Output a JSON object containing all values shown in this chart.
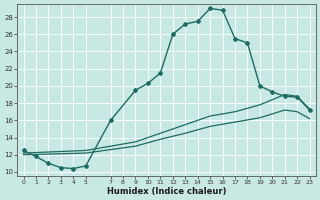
{
  "xlabel": "Humidex (Indice chaleur)",
  "bg_color": "#c8e8e4",
  "grid_color": "#b0d4d0",
  "line_color": "#1e6b62",
  "xlim": [
    -0.5,
    23.5
  ],
  "ylim": [
    9.5,
    29.5
  ],
  "xtick_vals": [
    0,
    1,
    2,
    3,
    4,
    5,
    7,
    8,
    9,
    10,
    11,
    12,
    13,
    14,
    15,
    16,
    17,
    18,
    19,
    20,
    21,
    22,
    23
  ],
  "xtick_labels": [
    "0",
    "1",
    "2",
    "3",
    "4",
    "5",
    "7",
    "8",
    "9",
    "10",
    "11",
    "12",
    "13",
    "14",
    "15",
    "16",
    "17",
    "18",
    "19",
    "20",
    "21",
    "22",
    "23"
  ],
  "ytick_vals": [
    10,
    12,
    14,
    16,
    18,
    20,
    22,
    24,
    26,
    28
  ],
  "ytick_labels": [
    "10",
    "12",
    "14",
    "16",
    "18",
    "20",
    "22",
    "24",
    "26",
    "28"
  ],
  "curve1_x": [
    0,
    1,
    2,
    3,
    4,
    5,
    7,
    9,
    10,
    11,
    12,
    13,
    14,
    15,
    16,
    17,
    18,
    19,
    20,
    21,
    22,
    23
  ],
  "curve1_y": [
    12.5,
    11.8,
    11.0,
    10.5,
    10.4,
    10.7,
    16.0,
    19.5,
    20.3,
    21.5,
    26.0,
    27.2,
    27.5,
    29.0,
    28.8,
    25.5,
    25.0,
    20.0,
    19.3,
    18.8,
    18.7,
    17.2
  ],
  "curve2_x": [
    0,
    5,
    7,
    9,
    11,
    13,
    15,
    17,
    19,
    21,
    22,
    23
  ],
  "curve2_y": [
    12.2,
    12.5,
    13.0,
    13.5,
    14.5,
    15.5,
    16.5,
    17.0,
    17.8,
    19.0,
    18.8,
    17.3
  ],
  "curve3_x": [
    0,
    5,
    7,
    9,
    11,
    13,
    15,
    17,
    19,
    21,
    22,
    23
  ],
  "curve3_y": [
    12.0,
    12.2,
    12.6,
    13.0,
    13.8,
    14.5,
    15.3,
    15.8,
    16.3,
    17.2,
    17.0,
    16.2
  ]
}
